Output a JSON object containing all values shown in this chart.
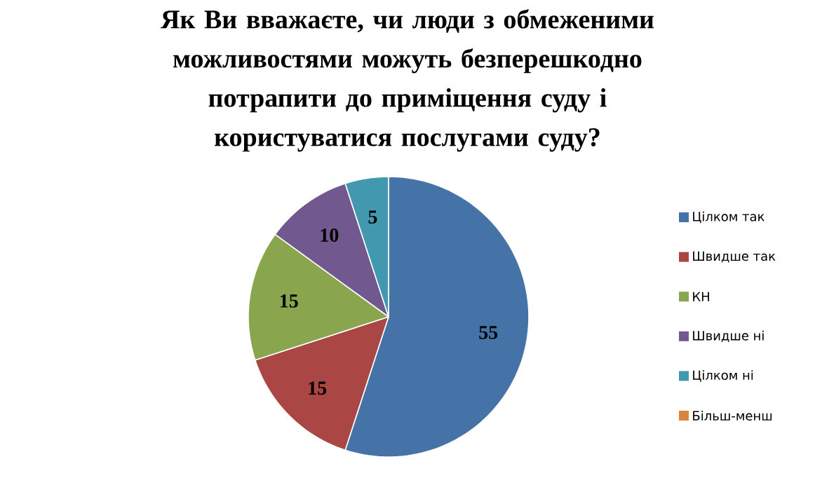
{
  "chart_data": {
    "type": "pie",
    "title": "Як Ви вважаєте, чи люди з обмеженими можливостями можуть безперешкодно потрапити до приміщення суду і користуватися послугами суду?",
    "categories": [
      "Цілком так",
      "Швидше так",
      "КН",
      "Швидше ні",
      "Цілком ні",
      "Більш-менш"
    ],
    "values": [
      55,
      15,
      15,
      10,
      5,
      0
    ],
    "colors": [
      "#4572a7",
      "#aa4643",
      "#89a54e",
      "#71588f",
      "#4198af",
      "#db843d"
    ],
    "value_labels": [
      "55",
      "15",
      "15",
      "10",
      "5",
      null
    ],
    "legend": "right"
  }
}
